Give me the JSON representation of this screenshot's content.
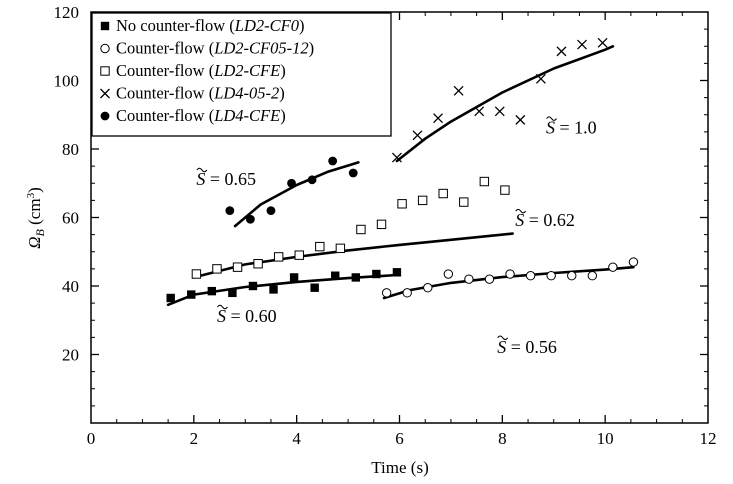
{
  "chart_data": {
    "type": "scatter",
    "xlabel": "Time (s)",
    "ylabel_symbol": "Ω",
    "ylabel_sub": "B",
    "ylabel_unit_open": " (cm",
    "ylabel_unit_sup": "3",
    "ylabel_unit_close": ")",
    "xlim": [
      0,
      12
    ],
    "ylim": [
      0,
      120
    ],
    "xticks": [
      "0",
      "2",
      "4",
      "6",
      "8",
      "10",
      "12"
    ],
    "yticks": [
      "20",
      "40",
      "60",
      "80",
      "100",
      "120"
    ],
    "legend_position": "top-left",
    "series": [
      {
        "label_prefix": "No counter-flow (",
        "label_code": "LD2-CF0",
        "label_suffix": ")",
        "marker": "filled-square",
        "points": [
          [
            1.55,
            36.5
          ],
          [
            1.95,
            37.5
          ],
          [
            2.35,
            38.5
          ],
          [
            2.75,
            38
          ],
          [
            3.15,
            40
          ],
          [
            3.55,
            39
          ],
          [
            3.95,
            42.5
          ],
          [
            4.35,
            39.5
          ],
          [
            4.75,
            43
          ],
          [
            5.15,
            42.5
          ],
          [
            5.55,
            43.5
          ],
          [
            5.95,
            44
          ]
        ],
        "fit": [
          [
            1.5,
            34.5
          ],
          [
            2.0,
            37.5
          ],
          [
            3.0,
            39.7
          ],
          [
            4.0,
            41.2
          ],
          [
            5.0,
            42.3
          ],
          [
            5.95,
            43.2
          ]
        ]
      },
      {
        "label_prefix": "Counter-flow (",
        "label_code": "LD2-CF05-12",
        "label_suffix": ")",
        "marker": "open-circle",
        "points": [
          [
            5.75,
            38
          ],
          [
            6.15,
            38
          ],
          [
            6.55,
            39.5
          ],
          [
            6.95,
            43.5
          ],
          [
            7.35,
            42
          ],
          [
            7.75,
            42
          ],
          [
            8.15,
            43.5
          ],
          [
            8.55,
            43
          ],
          [
            8.95,
            43
          ],
          [
            9.35,
            43
          ],
          [
            9.75,
            43
          ],
          [
            10.15,
            45.5
          ],
          [
            10.55,
            47
          ]
        ],
        "fit": [
          [
            5.7,
            36.5
          ],
          [
            6.2,
            38.8
          ],
          [
            7.0,
            40.9
          ],
          [
            8.0,
            42.6
          ],
          [
            9.0,
            43.8
          ],
          [
            10.0,
            44.8
          ],
          [
            10.55,
            45.5
          ]
        ]
      },
      {
        "label_prefix": "Counter-flow (",
        "label_code": "LD2-CFE",
        "label_suffix": ")",
        "marker": "open-square",
        "points": [
          [
            2.05,
            43.5
          ],
          [
            2.45,
            45
          ],
          [
            2.85,
            45.5
          ],
          [
            3.25,
            46.5
          ],
          [
            3.65,
            48.5
          ],
          [
            4.05,
            49
          ],
          [
            4.45,
            51.5
          ],
          [
            4.85,
            51
          ],
          [
            5.25,
            56.5
          ],
          [
            5.65,
            58
          ],
          [
            6.05,
            64
          ],
          [
            6.45,
            65
          ],
          [
            6.85,
            67
          ],
          [
            7.25,
            64.5
          ],
          [
            7.65,
            70.5
          ],
          [
            8.05,
            68
          ]
        ],
        "fit": [
          [
            2.0,
            42.5
          ],
          [
            3.0,
            46.3
          ],
          [
            4.0,
            48.5
          ],
          [
            5.0,
            50.4
          ],
          [
            6.0,
            52.0
          ],
          [
            7.0,
            53.5
          ],
          [
            8.2,
            55.3
          ]
        ]
      },
      {
        "label_prefix": "Counter-flow (",
        "label_code": "LD4-05-2",
        "label_suffix": ")",
        "marker": "cross",
        "points": [
          [
            5.95,
            77.5
          ],
          [
            6.35,
            84
          ],
          [
            6.75,
            89
          ],
          [
            7.15,
            97
          ],
          [
            7.55,
            91
          ],
          [
            7.95,
            91
          ],
          [
            8.35,
            88.5
          ],
          [
            8.75,
            100.5
          ],
          [
            9.15,
            108.5
          ],
          [
            9.55,
            110.5
          ],
          [
            9.95,
            111
          ]
        ],
        "fit": [
          [
            5.95,
            76.5
          ],
          [
            6.5,
            83.0
          ],
          [
            7.0,
            88.0
          ],
          [
            8.0,
            96.5
          ],
          [
            9.0,
            103.5
          ],
          [
            10.0,
            109.0
          ],
          [
            10.15,
            110.0
          ]
        ]
      },
      {
        "label_prefix": "Counter-flow (",
        "label_code": "LD4-CFE",
        "label_suffix": ")",
        "marker": "filled-circle",
        "points": [
          [
            2.7,
            62
          ],
          [
            3.1,
            59.5
          ],
          [
            3.5,
            62
          ],
          [
            3.9,
            70
          ],
          [
            4.3,
            71
          ],
          [
            4.7,
            76.5
          ],
          [
            5.1,
            73
          ]
        ],
        "fit": [
          [
            2.8,
            57.5
          ],
          [
            3.3,
            63.8
          ],
          [
            4.0,
            69.5
          ],
          [
            4.6,
            73.3
          ],
          [
            5.2,
            76.1
          ]
        ]
      }
    ],
    "annotations": [
      {
        "s_letter": "S",
        "value_text": " = 0.65",
        "x": 2.05,
        "y": 69.5
      },
      {
        "s_letter": "S",
        "value_text": " = 1.0",
        "x": 8.85,
        "y": 84.5
      },
      {
        "s_letter": "S",
        "value_text": " = 0.62",
        "x": 8.25,
        "y": 57.5
      },
      {
        "s_letter": "S",
        "value_text": " = 0.60",
        "x": 2.45,
        "y": 29.5
      },
      {
        "s_letter": "S",
        "value_text": " = 0.56",
        "x": 7.9,
        "y": 20.5
      }
    ]
  }
}
